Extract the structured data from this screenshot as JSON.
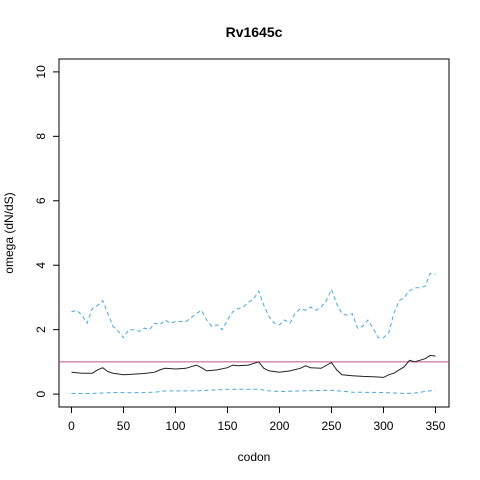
{
  "chart_data": {
    "type": "line",
    "title": "Rv1645c",
    "xlabel": "codon",
    "ylabel": "omega (dN/dS)",
    "xlim": [
      -12,
      363
    ],
    "ylim": [
      -0.4,
      10.4
    ],
    "x_ticks": [
      0,
      50,
      100,
      150,
      200,
      250,
      300,
      350
    ],
    "y_ticks": [
      0,
      2,
      4,
      6,
      8,
      10
    ],
    "grid": false,
    "reference_line": {
      "y": 1,
      "color": "#c0508c"
    },
    "series": [
      {
        "style": "solid",
        "color": "#222222",
        "x": [
          0,
          10,
          20,
          25,
          30,
          35,
          40,
          50,
          60,
          70,
          80,
          85,
          90,
          100,
          110,
          120,
          125,
          130,
          140,
          150,
          155,
          160,
          170,
          180,
          185,
          190,
          200,
          210,
          220,
          225,
          230,
          240,
          250,
          255,
          260,
          270,
          280,
          290,
          300,
          305,
          310,
          320,
          325,
          330,
          340,
          345,
          350
        ],
        "y": [
          0.68,
          0.65,
          0.65,
          0.75,
          0.82,
          0.7,
          0.65,
          0.6,
          0.62,
          0.64,
          0.68,
          0.75,
          0.8,
          0.78,
          0.8,
          0.9,
          0.82,
          0.72,
          0.75,
          0.82,
          0.9,
          0.88,
          0.9,
          1.0,
          0.8,
          0.72,
          0.68,
          0.72,
          0.8,
          0.88,
          0.82,
          0.8,
          0.98,
          0.75,
          0.6,
          0.57,
          0.55,
          0.54,
          0.52,
          0.6,
          0.65,
          0.85,
          1.05,
          1.0,
          1.1,
          1.2,
          1.18
        ]
      },
      {
        "style": "dashed",
        "color": "#4aa8e0",
        "x": [
          0,
          5,
          10,
          15,
          20,
          25,
          30,
          35,
          40,
          45,
          50,
          55,
          60,
          65,
          70,
          75,
          80,
          85,
          90,
          95,
          100,
          110,
          120,
          125,
          130,
          135,
          140,
          145,
          150,
          155,
          160,
          165,
          170,
          175,
          180,
          185,
          190,
          195,
          200,
          205,
          210,
          215,
          220,
          225,
          230,
          235,
          240,
          245,
          250,
          255,
          260,
          265,
          270,
          275,
          280,
          285,
          290,
          295,
          300,
          305,
          310,
          315,
          320,
          325,
          330,
          335,
          340,
          345,
          350
        ],
        "y": [
          2.55,
          2.6,
          2.45,
          2.2,
          2.65,
          2.75,
          2.9,
          2.5,
          2.1,
          1.95,
          1.75,
          2.0,
          2.0,
          1.95,
          2.05,
          2.0,
          2.2,
          2.15,
          2.3,
          2.2,
          2.25,
          2.25,
          2.5,
          2.6,
          2.3,
          2.1,
          2.15,
          2.0,
          2.3,
          2.55,
          2.65,
          2.7,
          2.85,
          2.95,
          3.2,
          2.75,
          2.4,
          2.2,
          2.15,
          2.3,
          2.2,
          2.5,
          2.65,
          2.6,
          2.7,
          2.6,
          2.7,
          2.9,
          3.25,
          2.8,
          2.5,
          2.45,
          2.5,
          2.05,
          2.1,
          2.3,
          2.05,
          1.75,
          1.75,
          1.9,
          2.5,
          2.9,
          3.0,
          3.2,
          3.3,
          3.3,
          3.35,
          3.75,
          3.72
        ]
      },
      {
        "style": "dashed",
        "color": "#4aa8e0",
        "x": [
          0,
          20,
          40,
          60,
          80,
          90,
          100,
          120,
          150,
          180,
          190,
          200,
          220,
          250,
          270,
          300,
          320,
          330,
          340,
          350
        ],
        "y": [
          0.02,
          0.02,
          0.05,
          0.04,
          0.06,
          0.1,
          0.1,
          0.1,
          0.15,
          0.15,
          0.1,
          0.08,
          0.1,
          0.12,
          0.06,
          0.05,
          0.02,
          0.03,
          0.08,
          0.12
        ]
      }
    ]
  }
}
